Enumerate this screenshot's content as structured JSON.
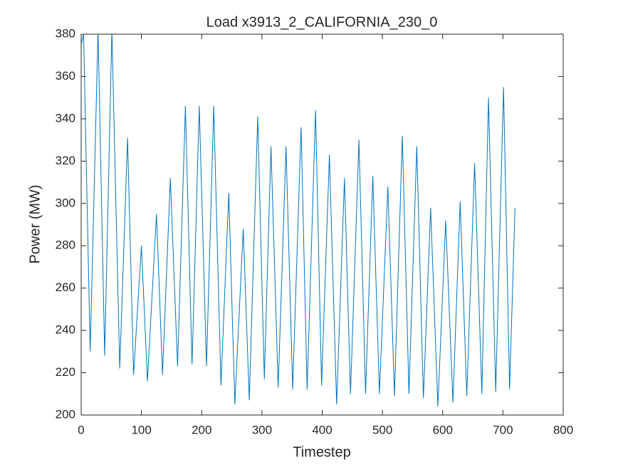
{
  "chart_data": {
    "type": "line",
    "title": "Load x3913_2_CALIFORNIA_230_0",
    "xlabel": "Timestep",
    "ylabel": "Power (MW)",
    "xlim": [
      0,
      800
    ],
    "xticks": [
      0,
      100,
      200,
      300,
      400,
      500,
      600,
      700,
      800
    ],
    "ylim": [
      200,
      380
    ],
    "yticks": [
      200,
      220,
      240,
      260,
      280,
      300,
      320,
      340,
      360,
      380
    ],
    "grid": false,
    "series": [
      {
        "name": "Load",
        "color": "#0072bd",
        "x": [
          0,
          4,
          15,
          28,
          39,
          51,
          64,
          77,
          87,
          100,
          110,
          125,
          135,
          148,
          160,
          173,
          184,
          196,
          208,
          220,
          232,
          245,
          255,
          269,
          279,
          293,
          304,
          315,
          327,
          340,
          351,
          365,
          375,
          389,
          399,
          412,
          424,
          437,
          447,
          461,
          472,
          484,
          495,
          509,
          520,
          533,
          544,
          557,
          568,
          580,
          592,
          605,
          617,
          629,
          640,
          653,
          665,
          676,
          688,
          701,
          711,
          720
        ],
        "values": [
          375,
          380,
          230,
          382,
          228,
          382,
          222,
          331,
          219,
          280,
          216,
          295,
          219,
          312,
          223,
          346,
          224,
          346,
          223,
          346,
          214,
          305,
          205,
          288,
          207,
          341,
          217,
          327,
          213,
          327,
          212,
          336,
          212,
          344,
          214,
          323,
          205,
          312,
          210,
          330,
          210,
          313,
          210,
          308,
          209,
          332,
          210,
          327,
          208,
          298,
          204,
          292,
          206,
          301,
          209,
          319,
          210,
          350,
          211,
          355,
          212,
          298
        ]
      }
    ]
  }
}
